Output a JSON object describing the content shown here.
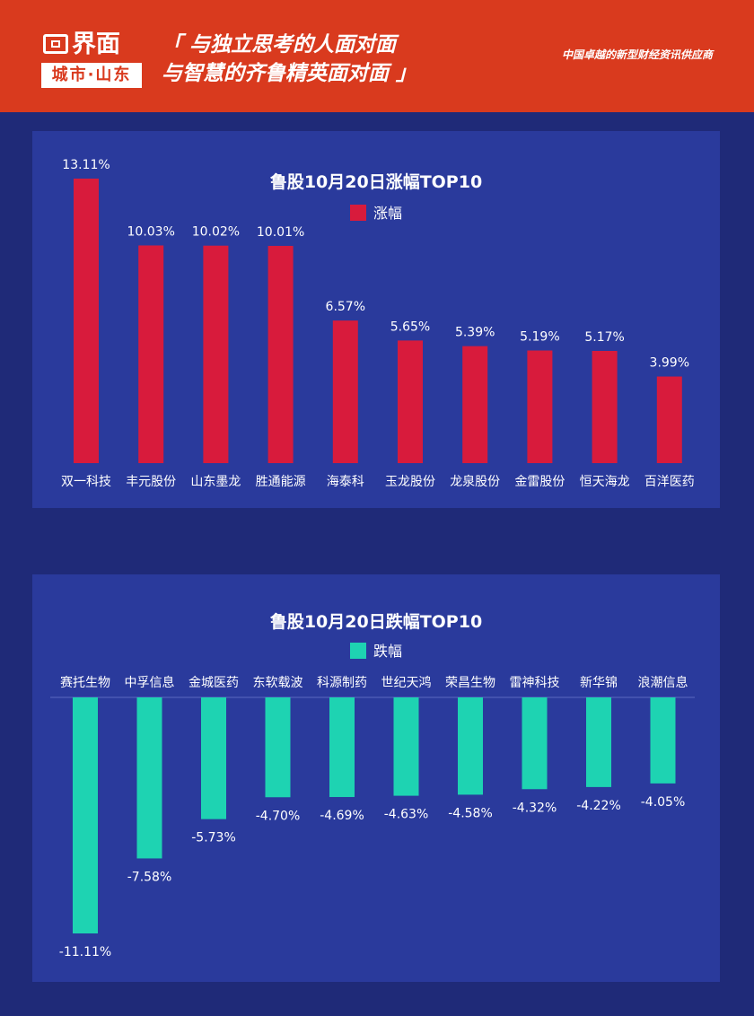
{
  "header": {
    "logo_word": "界面",
    "logo_sub": "城市·山东",
    "slogan_line1": "「 与独立思考的人面对面",
    "slogan_line2": "与智慧的齐鲁精英面对面 」",
    "tagline": "中国卓越的新型财经资讯供应商"
  },
  "colors": {
    "header_bg": "#d93a1e",
    "page_bg": "#1f2a78",
    "panel_bg": "#2a3a9c",
    "gain": "#d81b3c",
    "loss": "#1ed3b2"
  },
  "chart_data": [
    {
      "type": "bar",
      "title": "鲁股10月20日涨幅TOP10",
      "legend": "涨幅",
      "categories": [
        "双一科技",
        "丰元股份",
        "山东墨龙",
        "胜通能源",
        "海泰科",
        "玉龙股份",
        "龙泉股份",
        "金雷股份",
        "恒天海龙",
        "百洋医药"
      ],
      "values": [
        13.11,
        10.03,
        10.02,
        10.01,
        6.57,
        5.65,
        5.39,
        5.19,
        5.17,
        3.99
      ],
      "labels": [
        "13.11%",
        "10.03%",
        "10.02%",
        "10.01%",
        "6.57%",
        "5.65%",
        "5.39%",
        "5.19%",
        "5.17%",
        "3.99%"
      ],
      "unit": "%",
      "ylim": [
        0,
        13.11
      ],
      "grid": false,
      "legend_position": "top-center"
    },
    {
      "type": "bar",
      "title": "鲁股10月20日跌幅TOP10",
      "legend": "跌幅",
      "categories": [
        "赛托生物",
        "中孚信息",
        "金城医药",
        "东软载波",
        "科源制药",
        "世纪天鸿",
        "荣昌生物",
        "雷神科技",
        "新华锦",
        "浪潮信息"
      ],
      "values": [
        -11.11,
        -7.58,
        -5.73,
        -4.7,
        -4.69,
        -4.63,
        -4.58,
        -4.32,
        -4.22,
        -4.05
      ],
      "labels": [
        "-11.11%",
        "-7.58%",
        "-5.73%",
        "-4.70%",
        "-4.69%",
        "-4.63%",
        "-4.58%",
        "-4.32%",
        "-4.22%",
        "-4.05%"
      ],
      "unit": "%",
      "ylim": [
        -11.11,
        0
      ],
      "grid": false,
      "legend_position": "top-center"
    }
  ]
}
